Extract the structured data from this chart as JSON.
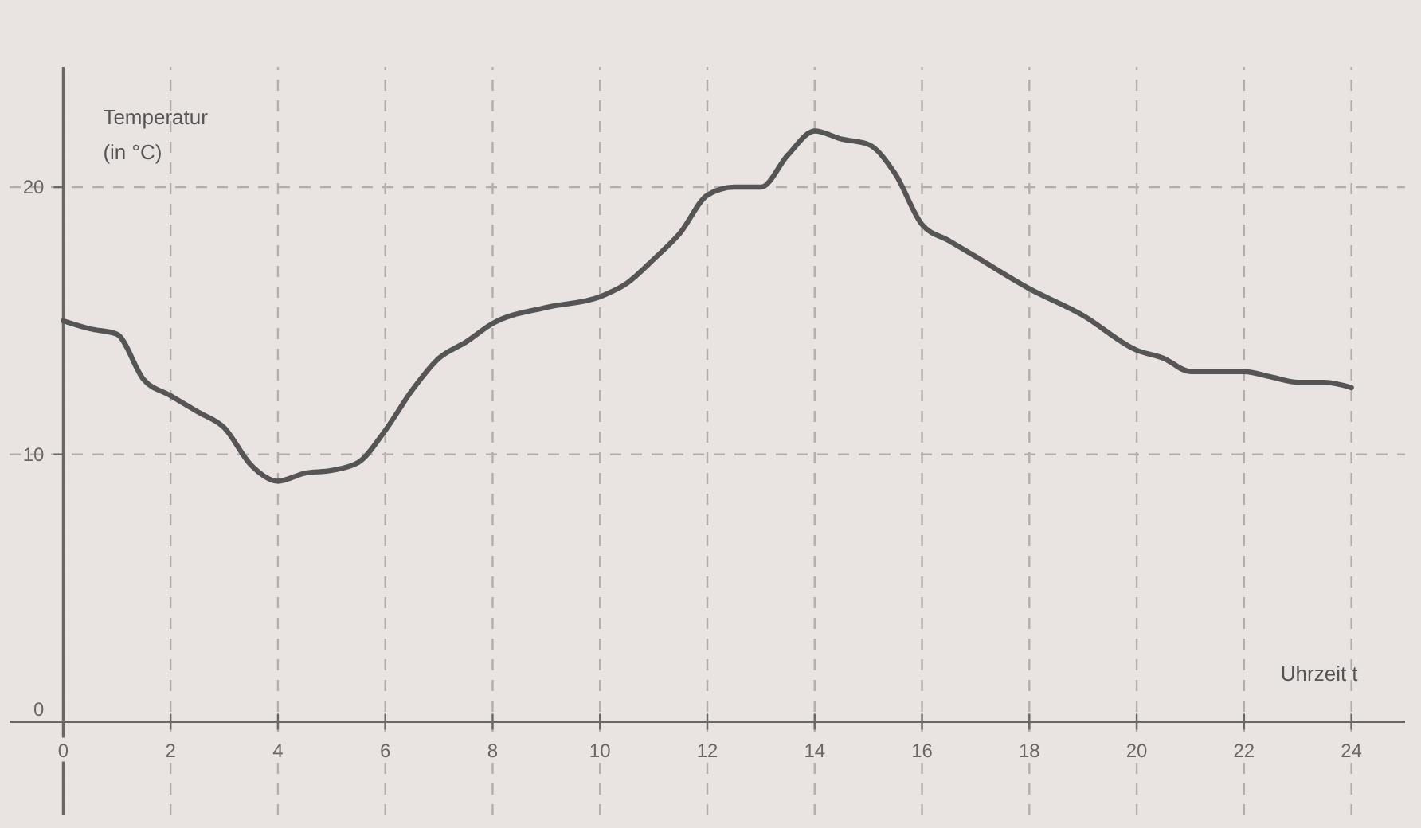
{
  "chart_data": {
    "type": "line",
    "xlabel": "Uhrzeit t",
    "ylabel": "Temperatur\n(in °C)",
    "x": [
      0,
      0.5,
      1,
      1.5,
      2,
      2.5,
      3,
      3.5,
      4,
      4.5,
      5,
      5.5,
      6,
      6.5,
      7,
      7.5,
      8,
      9,
      10,
      10.5,
      11,
      11.5,
      12,
      12.5,
      13,
      13.5,
      14,
      14.5,
      15,
      15.5,
      16,
      16.5,
      17,
      18,
      19,
      20,
      20.5,
      21,
      22,
      22.5,
      23,
      23.5,
      24
    ],
    "series": [
      {
        "color": "#555555",
        "values": [
          15,
          14.7,
          14.5,
          12.8,
          12.2,
          11.6,
          11,
          9.6,
          9,
          9.3,
          9.4,
          9.7,
          10.9,
          12.4,
          13.6,
          14.2,
          14.9,
          15.5,
          15.9,
          16.4,
          17.3,
          18.3,
          19.7,
          20,
          20,
          21.2,
          22.1,
          21.8,
          21.6,
          20.5,
          18.6,
          18,
          17.4,
          16.2,
          15.2,
          13.9,
          13.6,
          13.1,
          13.1,
          12.9,
          12.7,
          12.7,
          12.5
        ]
      }
    ],
    "xlim": [
      -1,
      25
    ],
    "ylim": [
      -3.5,
      24.5
    ],
    "xticks": [
      0,
      2,
      4,
      6,
      8,
      10,
      12,
      14,
      16,
      18,
      20,
      22,
      24
    ],
    "yticks": [
      0,
      10,
      20
    ],
    "grid": true
  }
}
